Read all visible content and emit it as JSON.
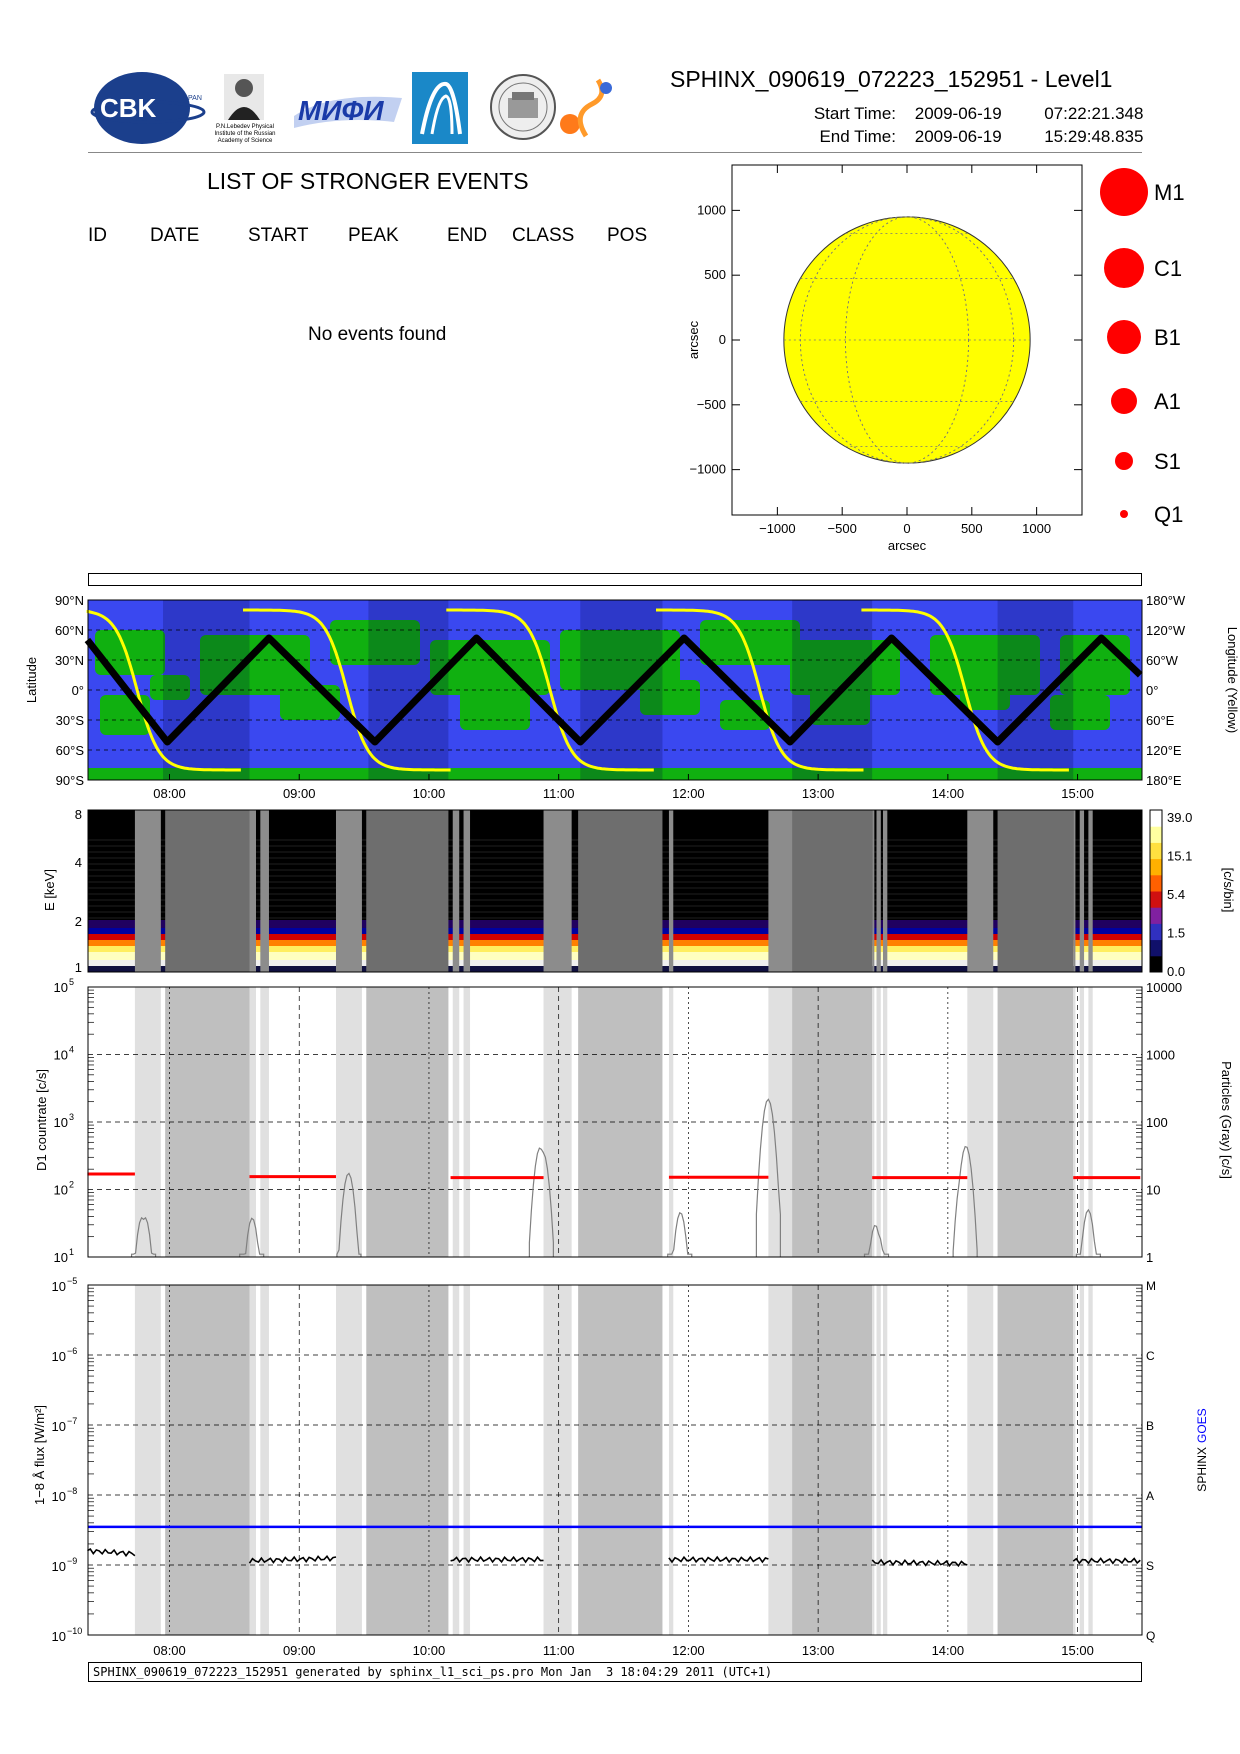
{
  "header": {
    "title": "SPHINX_090619_072223_152951 - Level1",
    "start_label": "Start Time:",
    "start_date": "2009-06-19",
    "start_time": "07:22:21.348",
    "end_label": "End Time:",
    "end_date": "2009-06-19",
    "end_time": "15:29:48.835",
    "logos": [
      "cbk-pan-logo",
      "lebedev-institute-logo",
      "mifi-logo",
      "sphinx-instrument-logo",
      "observatory-seal-logo",
      "solar-system-logo"
    ],
    "logo_text": {
      "cbk": "CBK",
      "pan": "PAN",
      "lebedev_line1": "P.N.Lebedev Physical",
      "lebedev_line2": "Institute of the Russian",
      "lebedev_line3": "Academy of Science",
      "mifi": "МИФИ"
    }
  },
  "events": {
    "title": "LIST OF STRONGER EVENTS",
    "columns": [
      "ID",
      "DATE",
      "START",
      "PEAK",
      "END",
      "CLASS",
      "POS"
    ],
    "empty_message": "No events found"
  },
  "footer": {
    "text": "SPHINX_090619_072223_152951 generated by sphinx_l1_sci_ps.pro Mon Jan  3 18:04:29 2011 (UTC+1)"
  },
  "colors": {
    "sun_disk": "#ffff00",
    "legend_circle": "#ff0000",
    "map_ocean": "#3a48f0",
    "map_land": "#10b010",
    "orbit_track": "#000000",
    "longitude_curve": "#ffff00",
    "goes_line": "#0000ff",
    "sphinx_line": "#000000",
    "d1_countrate": "#ff0000",
    "particles": "#808080"
  },
  "chart_data": [
    {
      "id": "sun-map",
      "type": "scatter",
      "xlabel": "arcsec",
      "ylabel": "arcsec",
      "xlim": [
        -1350,
        1350
      ],
      "ylim": [
        -1350,
        1350
      ],
      "x_ticks": [
        -1000,
        -500,
        0,
        500,
        1000
      ],
      "y_ticks": [
        -1000,
        -500,
        0,
        500,
        1000
      ],
      "x_tick_labels": [
        "−1000",
        "−500",
        "0",
        "500",
        "1000"
      ],
      "y_tick_labels": [
        "−1000",
        "−500",
        "0",
        "500",
        "1000"
      ],
      "solar_radius_arcsec": 950,
      "grid": true,
      "events": []
    },
    {
      "id": "class-legend",
      "type": "scatter",
      "classes": [
        "M1",
        "C1",
        "B1",
        "A1",
        "S1",
        "Q1"
      ],
      "marker_size_rank": [
        6,
        5,
        4,
        3,
        2,
        1
      ]
    },
    {
      "id": "orbit-map",
      "type": "line",
      "ylabel": "Latitude",
      "ylabel_right": "Longitude (Yellow)",
      "y_ticks_left": [
        "90°N",
        "60°N",
        "30°N",
        "0°",
        "30°S",
        "60°S",
        "90°S"
      ],
      "y_ticks_right": [
        "180°W",
        "120°W",
        "60°W",
        "0°",
        "60°E",
        "120°E",
        "180°E"
      ],
      "x_ticks": [
        "08:00",
        "09:00",
        "10:00",
        "11:00",
        "12:00",
        "13:00",
        "14:00",
        "15:00"
      ],
      "series": [
        {
          "name": "Latitude",
          "x": [
            "07:22",
            "07:59",
            "08:46",
            "09:35",
            "10:22",
            "11:10",
            "11:58",
            "12:47",
            "13:34",
            "14:23",
            "15:11",
            "15:29"
          ],
          "values": [
            50,
            -52,
            52,
            -52,
            52,
            -52,
            52,
            -52,
            52,
            -52,
            52,
            15
          ]
        }
      ]
    },
    {
      "id": "spectrogram",
      "type": "heatmap",
      "ylabel": "E [keV]",
      "colorbar_label": "[c/s/bin]",
      "y_ticks": [
        "1",
        "2",
        "4",
        "8"
      ],
      "colorbar_ticks": [
        "39.0",
        "15.1",
        "5.4",
        "1.5",
        "0.0"
      ],
      "x_ticks": [
        "08:00",
        "09:00",
        "10:00",
        "11:00",
        "12:00",
        "13:00",
        "14:00",
        "15:00"
      ]
    },
    {
      "id": "d1-countrate",
      "type": "line",
      "ylabel": "D1 countrate [c/s]",
      "ylabel_right": "Particles (Gray) [c/s]",
      "y_scale": "log",
      "ylim": [
        10,
        100000
      ],
      "y_ticks": [
        "10",
        "10",
        "10",
        "10",
        "10"
      ],
      "y_tick_exponents": [
        "1",
        "2",
        "3",
        "4",
        "5"
      ],
      "y_ticks_right": [
        "1",
        "10",
        "100",
        "1000",
        "10000"
      ],
      "series": [
        {
          "name": "D1",
          "segments": [
            {
              "x": [
                "07:22",
                "07:44"
              ],
              "value": 170
            },
            {
              "x": [
                "08:37",
                "09:17"
              ],
              "value": 155
            },
            {
              "x": [
                "10:10",
                "10:53"
              ],
              "value": 150
            },
            {
              "x": [
                "11:51",
                "12:37"
              ],
              "value": 152
            },
            {
              "x": [
                "13:25",
                "14:09"
              ],
              "value": 150
            },
            {
              "x": [
                "14:58",
                "15:29"
              ],
              "value": 150
            }
          ]
        },
        {
          "name": "Particles (Gray)",
          "peaks": [
            {
              "x": "07:48",
              "value": 6
            },
            {
              "x": "08:38",
              "value": 4
            },
            {
              "x": "09:23",
              "value": 18
            },
            {
              "x": "10:52",
              "value": 60
            },
            {
              "x": "11:56",
              "value": 5
            },
            {
              "x": "12:37",
              "value": 220
            },
            {
              "x": "13:27",
              "value": 4
            },
            {
              "x": "14:08",
              "value": 50
            },
            {
              "x": "15:05",
              "value": 5
            }
          ]
        }
      ]
    },
    {
      "id": "flux",
      "type": "line",
      "ylabel": "1−8 Å flux [W/m²]",
      "ylabel_right_sphinx": "SPHINX",
      "ylabel_right_goes": "GOES",
      "y_scale": "log",
      "ylim": [
        1e-10,
        1e-05
      ],
      "y_ticks": [
        "10",
        "10",
        "10",
        "10",
        "10",
        "10"
      ],
      "y_tick_exponents": [
        "−10",
        "−9",
        "−8",
        "−7",
        "−6",
        "−5"
      ],
      "class_labels": [
        "Q",
        "S",
        "A",
        "B",
        "C",
        "M"
      ],
      "x_ticks": [
        "08:00",
        "09:00",
        "10:00",
        "11:00",
        "12:00",
        "13:00",
        "14:00",
        "15:00"
      ],
      "series": [
        {
          "name": "GOES",
          "value": 3.5e-09
        },
        {
          "name": "SPHINX",
          "segments": [
            {
              "x": [
                "07:22",
                "07:44"
              ],
              "values": [
                1.6e-09,
                1.45e-09
              ]
            },
            {
              "x": [
                "08:37",
                "09:17"
              ],
              "values": [
                1.15e-09,
                1.25e-09
              ]
            },
            {
              "x": [
                "10:10",
                "10:53"
              ],
              "values": [
                1.2e-09,
                1.2e-09
              ]
            },
            {
              "x": [
                "11:51",
                "12:37"
              ],
              "values": [
                1.2e-09,
                1.2e-09
              ]
            },
            {
              "x": [
                "13:25",
                "14:09"
              ],
              "values": [
                1.1e-09,
                1.05e-09
              ]
            },
            {
              "x": [
                "14:58",
                "15:29"
              ],
              "values": [
                1.15e-09,
                1.15e-09
              ]
            }
          ]
        }
      ]
    }
  ]
}
